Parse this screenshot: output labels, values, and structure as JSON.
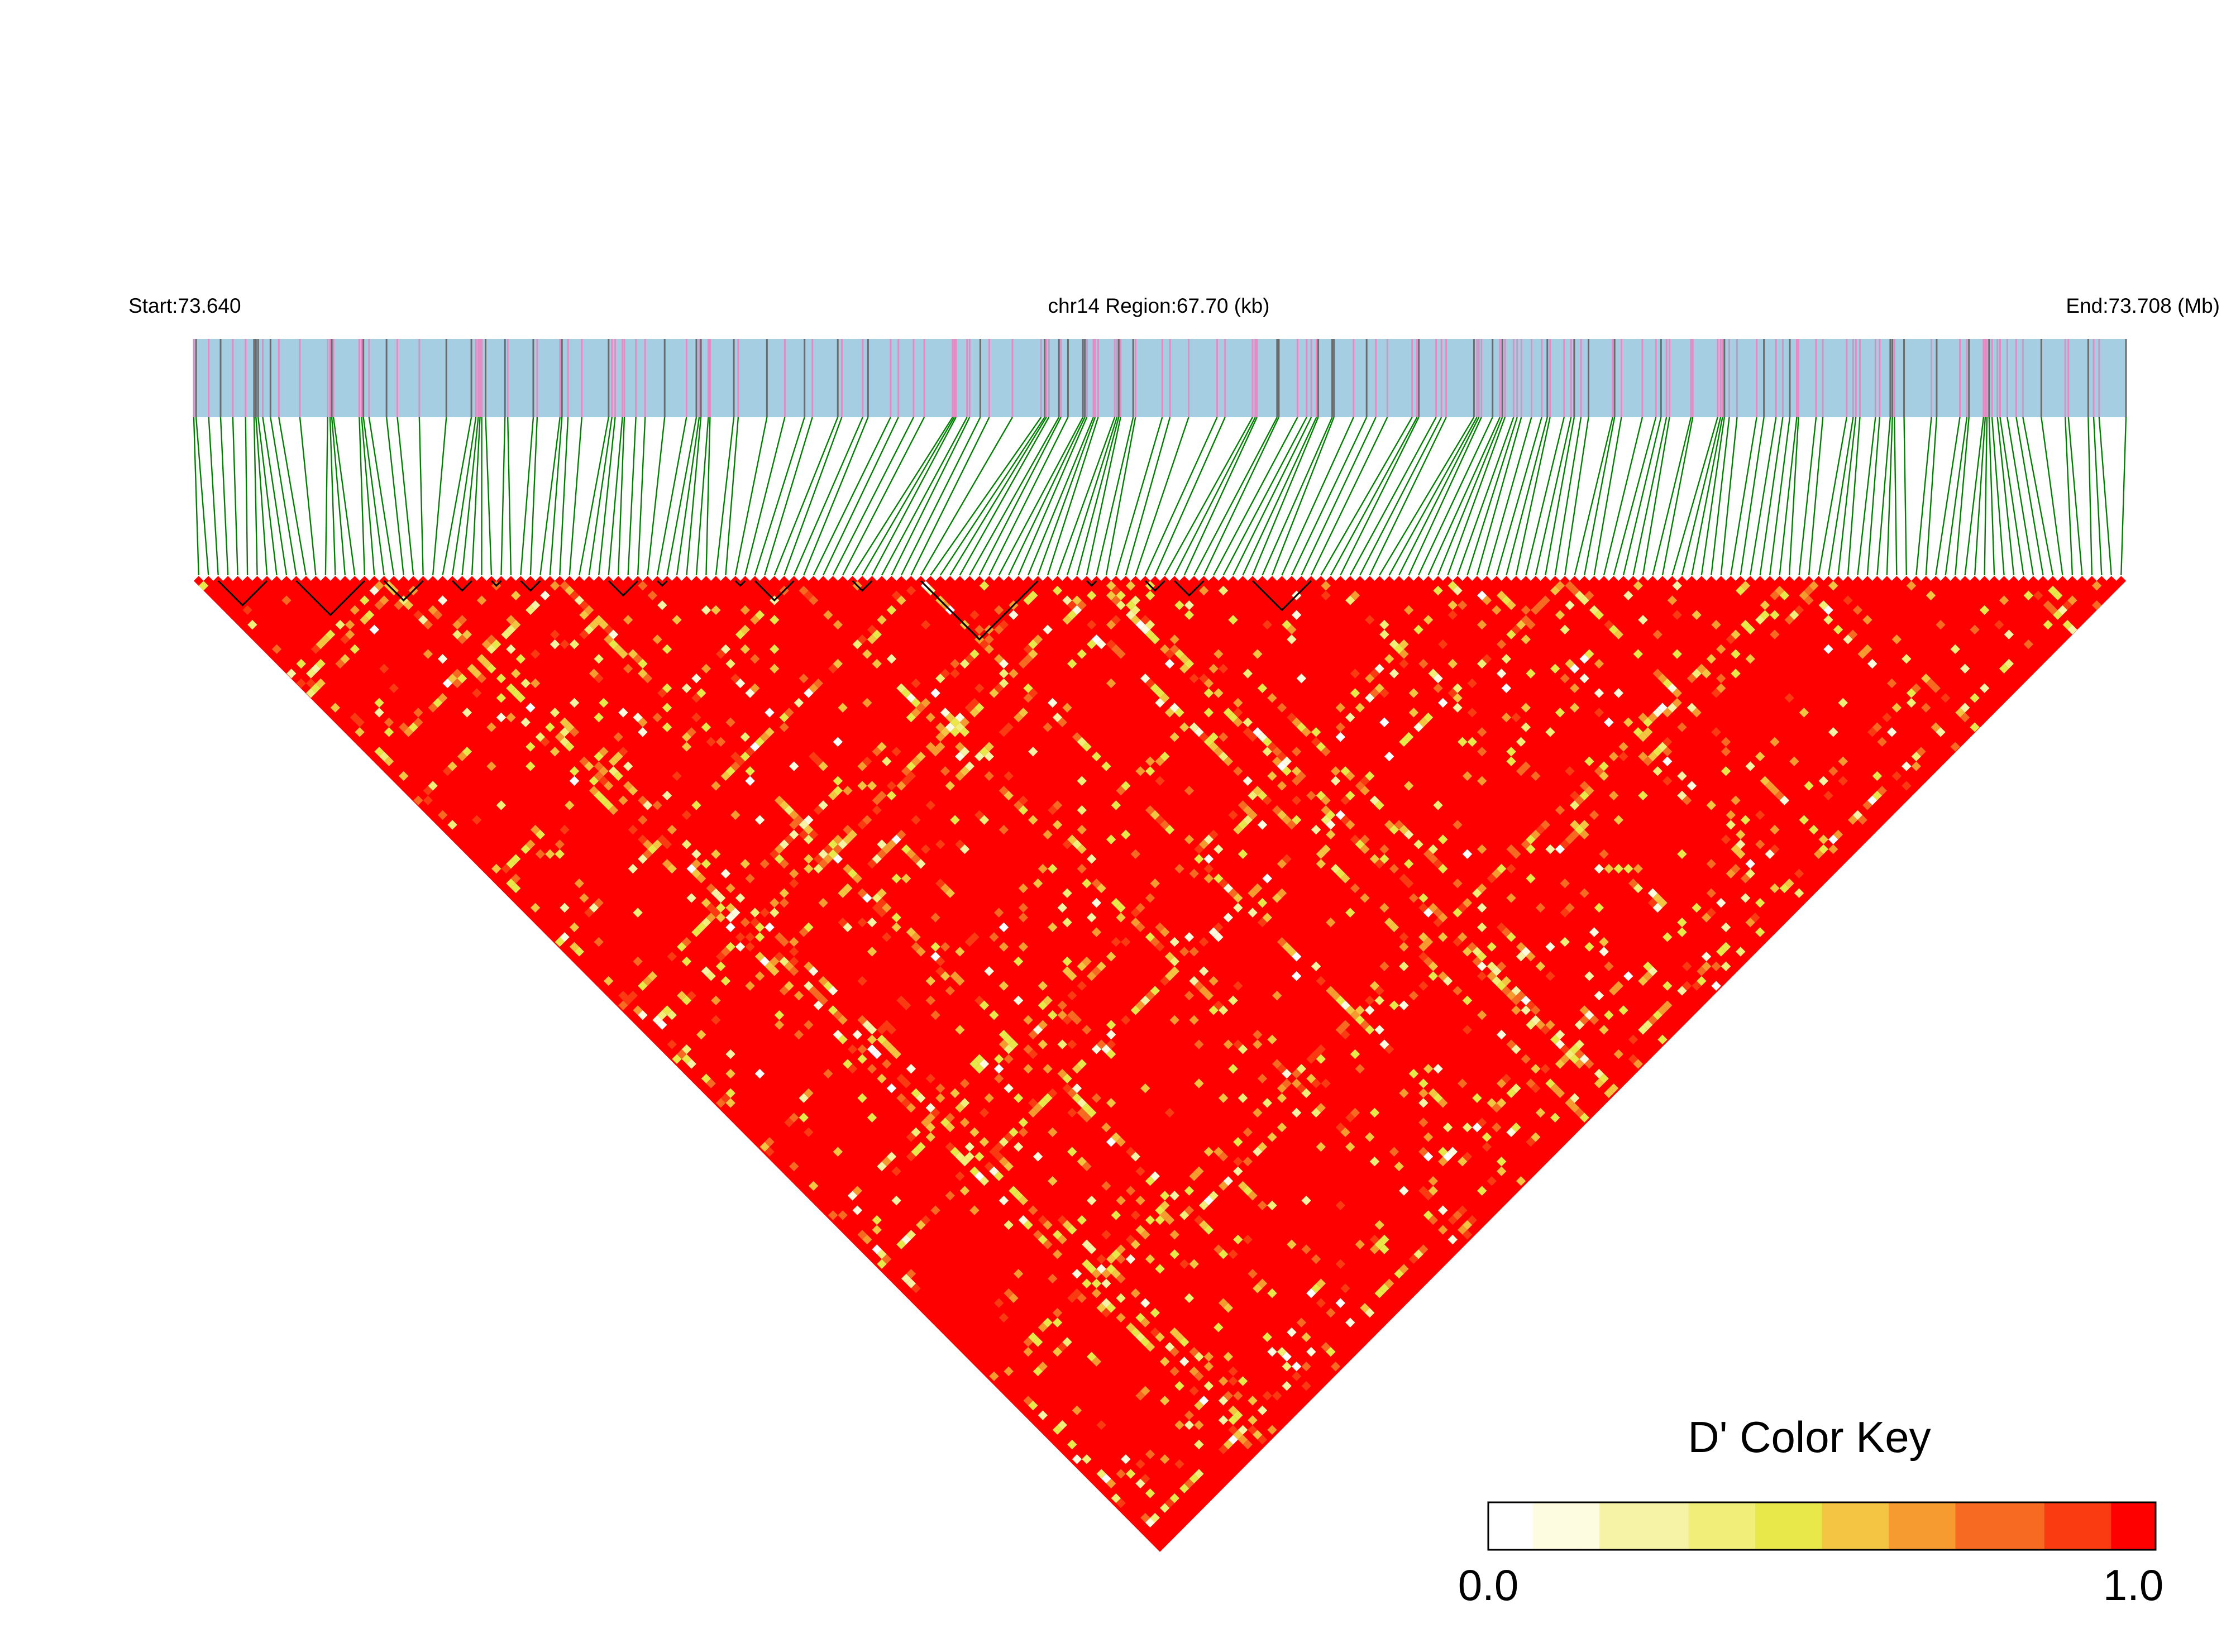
{
  "chart_data": {
    "type": "heatmap",
    "subtype": "linkage-disequilibrium-triangle",
    "chromosome": "chr14",
    "header": {
      "start_label": "Start:73.640",
      "region_label": "chr14 Region:67.70 (kb)",
      "end_label": "End:73.708 (Mb)"
    },
    "start_mb": 73.64,
    "end_mb": 73.708,
    "region_kb": 67.7,
    "snp_count": 198,
    "statistic": "D'",
    "value_range": [
      0.0,
      1.0
    ],
    "dominant_value": 1.0,
    "legend": {
      "title": "D' Color Key",
      "min_label": "0.0",
      "max_label": "1.0",
      "placement": "bottom-right"
    },
    "colors": {
      "track_fill": "#a6cee3",
      "snp_line_main": "#e78ac3",
      "snp_line_alt": "#6b6b6b",
      "connector": "#008000",
      "ld_high": "#ff0000",
      "ld_mid": "#e8e84a",
      "ld_low": "#ffffff",
      "block_outline": "#000000"
    },
    "color_scale": [
      "#ffffff",
      "#fdfbe0",
      "#f7f3a6",
      "#f2ee7a",
      "#e8e84a",
      "#f4c542",
      "#f59b30",
      "#f66a22",
      "#fa3b12",
      "#ff0000"
    ],
    "haplotype_blocks": [
      [
        2,
        7
      ],
      [
        10,
        17
      ],
      [
        19,
        23
      ],
      [
        26,
        28
      ],
      [
        30,
        31
      ],
      [
        33,
        35
      ],
      [
        42,
        45
      ],
      [
        47,
        48
      ],
      [
        55,
        56
      ],
      [
        57,
        61
      ],
      [
        67,
        69
      ],
      [
        74,
        86
      ],
      [
        91,
        92
      ],
      [
        97,
        99
      ],
      [
        100,
        103
      ],
      [
        108,
        114
      ]
    ]
  }
}
